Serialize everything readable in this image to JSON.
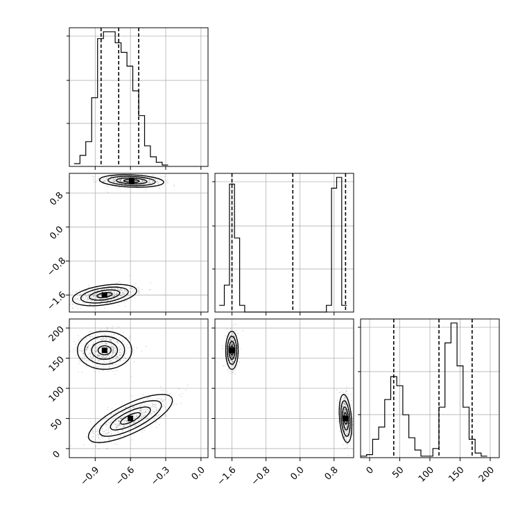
{
  "chart_data": {
    "type": "corner",
    "grid": true,
    "parameters": [
      {
        "range": [
          -1.12,
          0.06
        ],
        "ticks": [
          -0.9,
          -0.6,
          -0.3,
          0.0
        ],
        "tick_labels": [
          "−0.9",
          "−0.6",
          "−0.3",
          "0.0"
        ],
        "quantiles": [
          -0.85,
          -0.7,
          -0.53
        ],
        "histogram": {
          "bin_width": 0.05,
          "bins_start": -1.08,
          "counts": [
            2,
            8,
            18,
            50,
            93,
            98,
            98,
            90,
            83,
            73,
            55,
            37,
            15,
            7,
            3,
            1
          ]
        }
      },
      {
        "range": [
          -2.0,
          1.26
        ],
        "ticks": [
          -1.6,
          -0.8,
          0.0,
          0.8
        ],
        "tick_labels": [
          "−1.6",
          "−0.8",
          "0.0",
          "0.8"
        ],
        "quantiles": [
          -1.6,
          -0.17,
          1.07
        ],
        "histogram": {
          "bin_width": 0.12,
          "bins_start": -1.9,
          "counts": [
            5,
            20,
            95,
            55,
            5,
            0,
            0,
            0,
            0,
            0,
            0,
            0,
            0,
            0,
            0,
            0,
            0,
            0,
            0,
            0,
            0,
            5,
            92,
            100,
            5
          ]
        }
      },
      {
        "range": [
          -15,
          215
        ],
        "ticks": [
          0,
          50,
          100,
          150,
          200
        ],
        "tick_labels": [
          "0",
          "50",
          "100",
          "150",
          "200"
        ],
        "quantiles": [
          40,
          115,
          170
        ],
        "histogram": {
          "bin_width": 10,
          "bins_start": -15,
          "counts": [
            1,
            2,
            12,
            20,
            38,
            53,
            47,
            28,
            13,
            5,
            1,
            1,
            6,
            33,
            75,
            88,
            60,
            33,
            12,
            3,
            1
          ]
        }
      }
    ],
    "pairs": [
      {
        "x": 0,
        "y": 1,
        "clusters": [
          {
            "mean": [
              -0.59,
              1.08
            ],
            "sd": [
              0.13,
              0.07
            ],
            "corr": -0.2,
            "n": 500
          },
          {
            "mean": [
              -0.82,
              -1.6
            ],
            "sd": [
              0.13,
              0.12
            ],
            "corr": 0.4,
            "n": 500
          }
        ]
      },
      {
        "x": 0,
        "y": 2,
        "clusters": [
          {
            "mean": [
              -0.82,
              163
            ],
            "sd": [
              0.11,
              15
            ],
            "corr": 0.0,
            "n": 550
          },
          {
            "mean": [
              -0.6,
              50
            ],
            "sd": [
              0.17,
              19
            ],
            "corr": 0.75,
            "n": 550
          }
        ]
      },
      {
        "x": 1,
        "y": 2,
        "clusters": [
          {
            "mean": [
              -1.6,
              163
            ],
            "sd": [
              0.07,
              15
            ],
            "corr": 0.0,
            "n": 450
          },
          {
            "mean": [
              1.07,
              50
            ],
            "sd": [
              0.07,
              19
            ],
            "corr": -0.3,
            "n": 450
          }
        ]
      }
    ]
  }
}
